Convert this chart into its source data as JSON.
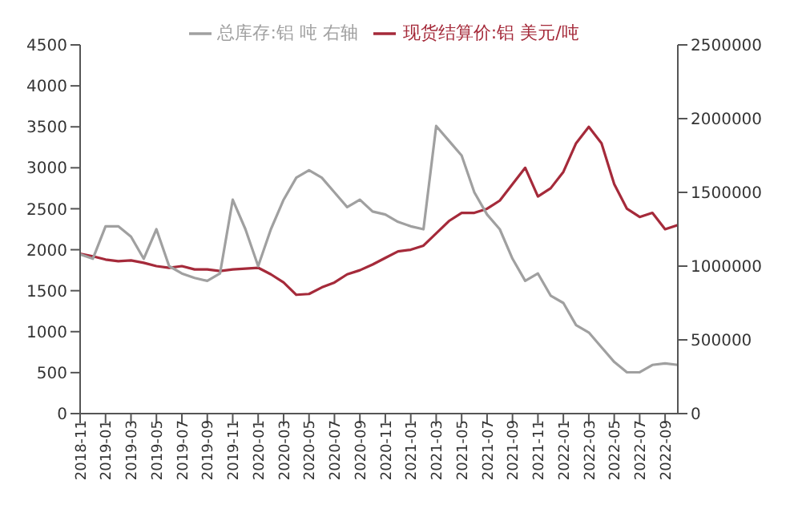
{
  "chart_data": {
    "type": "line",
    "x": [
      "2018-11",
      "2018-12",
      "2019-01",
      "2019-02",
      "2019-03",
      "2019-04",
      "2019-05",
      "2019-06",
      "2019-07",
      "2019-08",
      "2019-09",
      "2019-10",
      "2019-11",
      "2019-12",
      "2020-01",
      "2020-02",
      "2020-03",
      "2020-04",
      "2020-05",
      "2020-06",
      "2020-07",
      "2020-08",
      "2020-09",
      "2020-10",
      "2020-11",
      "2020-12",
      "2021-01",
      "2021-02",
      "2021-03",
      "2021-04",
      "2021-05",
      "2021-06",
      "2021-07",
      "2021-08",
      "2021-09",
      "2021-10",
      "2021-11",
      "2021-12",
      "2022-01",
      "2022-02",
      "2022-03",
      "2022-04",
      "2022-05",
      "2022-06",
      "2022-07",
      "2022-08",
      "2022-09",
      "2022-10"
    ],
    "series": [
      {
        "name": "现货结算价:铝 美元/吨",
        "color": "#a52a3a",
        "values": [
          1950,
          1920,
          1880,
          1860,
          1870,
          1840,
          1800,
          1780,
          1800,
          1760,
          1760,
          1740,
          1760,
          1770,
          1780,
          1700,
          1600,
          1450,
          1460,
          1540,
          1600,
          1700,
          1750,
          1820,
          1900,
          1980,
          2000,
          2050,
          2200,
          2350,
          2450,
          2450,
          2500,
          2600,
          2800,
          3000,
          2650,
          2750,
          2950,
          3300,
          3500,
          3300,
          2800,
          2500,
          2400,
          2450,
          2250,
          2300
        ]
      },
      {
        "name": "总库存:铝 吨 右轴",
        "color": "#a0a0a0",
        "axis": "y2",
        "values": [
          1080000,
          1050000,
          1270000,
          1270000,
          1200000,
          1050000,
          1250000,
          1000000,
          950000,
          920000,
          900000,
          950000,
          1450000,
          1250000,
          1000000,
          1250000,
          1450000,
          1600000,
          1650000,
          1600000,
          1500000,
          1400000,
          1450000,
          1370000,
          1350000,
          1300000,
          1270000,
          1250000,
          1950000,
          1850000,
          1750000,
          1500000,
          1350000,
          1250000,
          1050000,
          900000,
          950000,
          800000,
          750000,
          600000,
          550000,
          450000,
          350000,
          280000,
          280000,
          330000,
          340000,
          330000
        ]
      }
    ],
    "xlim": [
      "2018-11",
      "2022-10"
    ],
    "xticks": [
      "2018-11",
      "2019-01",
      "2019-03",
      "2019-05",
      "2019-07",
      "2019-09",
      "2019-11",
      "2020-01",
      "2020-03",
      "2020-05",
      "2020-07",
      "2020-09",
      "2020-11",
      "2021-01",
      "2021-03",
      "2021-05",
      "2021-07",
      "2021-09",
      "2021-11",
      "2022-01",
      "2022-03",
      "2022-05",
      "2022-07",
      "2022-09"
    ],
    "ylim": [
      0,
      4500
    ],
    "yticks": [
      0,
      500,
      1000,
      1500,
      2000,
      2500,
      3000,
      3500,
      4000,
      4500
    ],
    "y2lim": [
      0,
      2500000
    ],
    "y2ticks": [
      0,
      500000,
      1000000,
      1500000,
      2000000,
      2500000
    ],
    "grid": false,
    "legend": "top",
    "marker": "none",
    "line_style": "solid"
  }
}
